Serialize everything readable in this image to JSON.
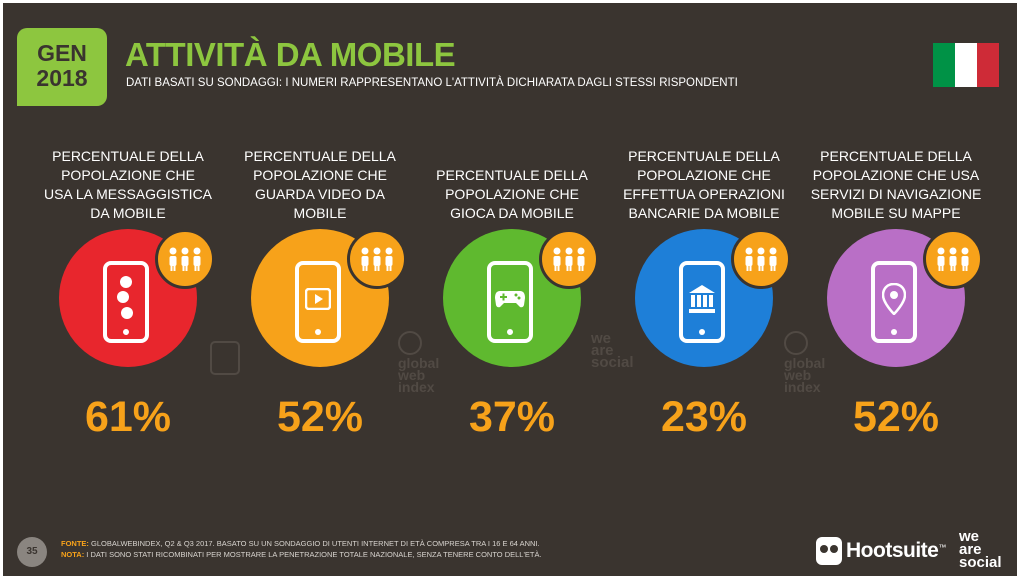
{
  "header": {
    "badge_line1": "GEN",
    "badge_line2": "2018",
    "title": "ATTIVITÀ DA MOBILE",
    "subtitle": "DATI BASATI SU SONDAGGI: I NUMERI RAPPRESENTANO L'ATTIVITÀ DICHIARATA DAGLI STESSI RISPONDENTI",
    "flag_colors": [
      "#009246",
      "#ffffff",
      "#ce2b37"
    ]
  },
  "stats": [
    {
      "label_lines": [
        "PERCENTUALE DELLA",
        "POPOLAZIONE CHE",
        "USA LA MESSAGGISTICA",
        "DA MOBILE"
      ],
      "value": "61%",
      "color": "#e8262d",
      "icon": "chat-bubbles-icon"
    },
    {
      "label_lines": [
        "PERCENTUALE DELLA",
        "POPOLAZIONE CHE",
        "GUARDA VIDEO DA",
        "MOBILE"
      ],
      "value": "52%",
      "color": "#f7a21a",
      "icon": "video-play-icon"
    },
    {
      "label_lines": [
        "PERCENTUALE DELLA",
        "POPOLAZIONE CHE",
        "GIOCA DA MOBILE"
      ],
      "value": "37%",
      "color": "#5fb92f",
      "icon": "gamepad-icon"
    },
    {
      "label_lines": [
        "PERCENTUALE DELLA",
        "POPOLAZIONE CHE",
        "EFFETTUA OPERAZIONI",
        "BANCARIE DA MOBILE"
      ],
      "value": "23%",
      "color": "#1e7fd8",
      "icon": "bank-icon"
    },
    {
      "label_lines": [
        "PERCENTUALE DELLA",
        "POPOLAZIONE CHE USA",
        "SERVIZI DI NAVIGAZIONE",
        "MOBILE SU MAPPE"
      ],
      "value": "52%",
      "color": "#b96fc6",
      "icon": "map-pin-icon"
    }
  ],
  "watermarks": {
    "gwi_lines": [
      "global",
      "web",
      "index"
    ],
    "was_lines": [
      "we",
      "are",
      "social"
    ]
  },
  "footer": {
    "page_number": "35",
    "source_label": "FONTE:",
    "source_text": "GLOBALWEBINDEX, Q2 & Q3 2017. BASATO SU UN SONDAGGIO DI UTENTI INTERNET DI ETÀ COMPRESA TRA I 16 E 64 ANNI.",
    "note_label": "NOTA:",
    "note_text": "I DATI SONO STATI RICOMBINATI PER MOSTRARE LA PENETRAZIONE TOTALE NAZIONALE, SENZA TENERE CONTO DELL'ETÀ.",
    "hootsuite": "Hootsuite",
    "hootsuite_tm": "™",
    "was_lines": [
      "we",
      "are",
      "social"
    ]
  }
}
